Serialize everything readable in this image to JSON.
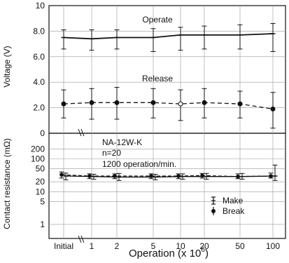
{
  "chart_data": {
    "type": "line",
    "x_categories": [
      "Initial",
      "1",
      "2",
      "5",
      "10",
      "20",
      "50",
      "100"
    ],
    "xlabel_main": "Operation (x 10",
    "xlabel_exp": "6",
    "xlabel_close": ")",
    "voltage": {
      "ylabel": "Voltage (V)",
      "ticks": [
        "10",
        "8.0",
        "6.0",
        "4.0",
        "2.0",
        "0"
      ],
      "tick_values": [
        10,
        8,
        6,
        4,
        2,
        0
      ],
      "ylim": [
        0,
        10
      ],
      "series": [
        {
          "name": "Operate",
          "values": [
            7.5,
            7.4,
            7.5,
            7.5,
            7.7,
            7.7,
            7.7,
            7.8
          ],
          "lower": [
            6.6,
            6.5,
            6.6,
            6.4,
            6.5,
            6.6,
            6.6,
            6.4
          ],
          "upper": [
            8.1,
            8.1,
            8.1,
            8.2,
            8.3,
            8.4,
            8.5,
            8.6
          ]
        },
        {
          "name": "Release",
          "values": [
            2.3,
            2.4,
            2.4,
            2.4,
            2.3,
            2.4,
            2.3,
            1.9
          ],
          "lower": [
            1.2,
            1.1,
            1.1,
            1.2,
            1.0,
            1.2,
            1.2,
            0.4
          ],
          "upper": [
            3.4,
            3.5,
            3.6,
            3.5,
            3.4,
            3.5,
            3.3,
            3.2
          ]
        }
      ]
    },
    "resistance": {
      "ylabel": "Contact resistance (mΩ)",
      "scale": "log",
      "ticks": [
        "200",
        "100",
        "50",
        "20",
        "10",
        "5",
        "1"
      ],
      "tick_values": [
        200,
        100,
        50,
        20,
        10,
        5,
        1
      ],
      "annotations": [
        "NA-12W-K",
        "n=20",
        "1200 operation/min."
      ],
      "series": [
        {
          "name": "Make",
          "values": [
            30,
            29,
            28,
            28,
            29,
            29,
            29,
            30
          ],
          "lower": [
            23,
            24,
            22,
            23,
            24,
            24,
            24,
            22
          ],
          "upper": [
            37,
            34,
            36,
            34,
            35,
            36,
            36,
            65
          ]
        },
        {
          "name": "Break",
          "values": [
            33,
            30,
            30,
            30,
            30,
            31,
            29,
            30
          ],
          "lower": [
            26,
            25,
            25,
            25,
            25,
            26,
            25,
            26
          ],
          "upper": [
            40,
            35,
            35,
            35,
            35,
            36,
            35,
            37
          ]
        }
      ]
    },
    "legend": [
      "Make",
      "Break"
    ]
  }
}
